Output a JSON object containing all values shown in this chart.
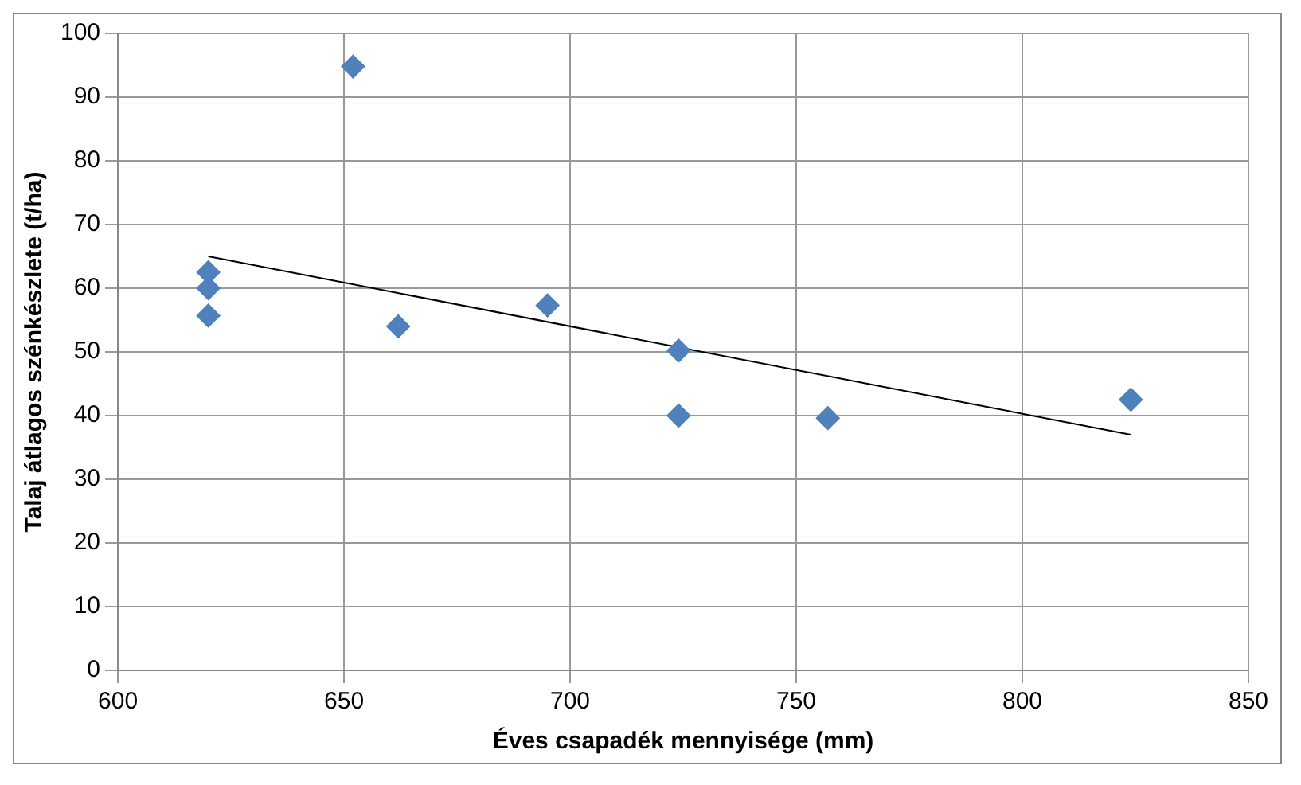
{
  "chart_data": {
    "type": "scatter",
    "xlabel": "Éves csapadék mennyisége (mm)",
    "ylabel": "Talaj átlagos szénkészlete (t/ha)",
    "xlim": [
      600,
      850
    ],
    "xticks": [
      600,
      650,
      700,
      750,
      800,
      850
    ],
    "ylim": [
      0,
      100
    ],
    "yticks": [
      0,
      10,
      20,
      30,
      40,
      50,
      60,
      70,
      80,
      90,
      100
    ],
    "grid": true,
    "series": [
      {
        "marker": "diamond",
        "color": "#4f81bd",
        "x": [
          620,
          620,
          620,
          652,
          662,
          695,
          724,
          724,
          757,
          824
        ],
        "values": [
          62.5,
          60,
          55.7,
          94.8,
          54,
          57.3,
          50.2,
          40,
          39.6,
          42.5
        ]
      },
      {
        "type": "line",
        "marker": "none",
        "color": "#000000",
        "x": [
          620,
          824
        ],
        "values": [
          65,
          37
        ]
      }
    ]
  }
}
